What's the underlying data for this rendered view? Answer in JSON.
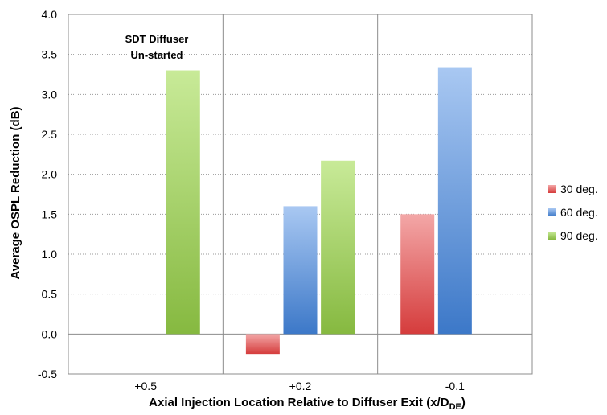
{
  "chart_data": {
    "type": "bar",
    "title": "",
    "xlabel": "Axial Injection Location Relative to Diffuser Exit (x/D",
    "xlabel_sub": "DE",
    "xlabel_close": ")",
    "ylabel": "Average OSPL Reduction (dB)",
    "ylim": [
      -0.5,
      4.0
    ],
    "yticks": [
      "4.0",
      "3.5",
      "3.0",
      "2.5",
      "2.0",
      "1.5",
      "1.0",
      "0.5",
      "0.0",
      "-0.5"
    ],
    "ytick_values": [
      4.0,
      3.5,
      3.0,
      2.5,
      2.0,
      1.5,
      1.0,
      0.5,
      0.0,
      -0.5
    ],
    "categories": [
      "+0.5",
      "+0.2",
      "-0.1"
    ],
    "series": [
      {
        "name": "30 deg.",
        "values": [
          null,
          -0.25,
          1.5
        ],
        "color": "#d94a4a"
      },
      {
        "name": "60 deg.",
        "values": [
          null,
          1.6,
          3.34
        ],
        "color": "#4a86d0"
      },
      {
        "name": "90 deg.",
        "values": [
          3.3,
          2.17,
          null
        ],
        "color": "#8fc048"
      }
    ],
    "grid": true,
    "legend_position": "right",
    "annotation": [
      "SDT Diffuser",
      "Un-started"
    ]
  }
}
